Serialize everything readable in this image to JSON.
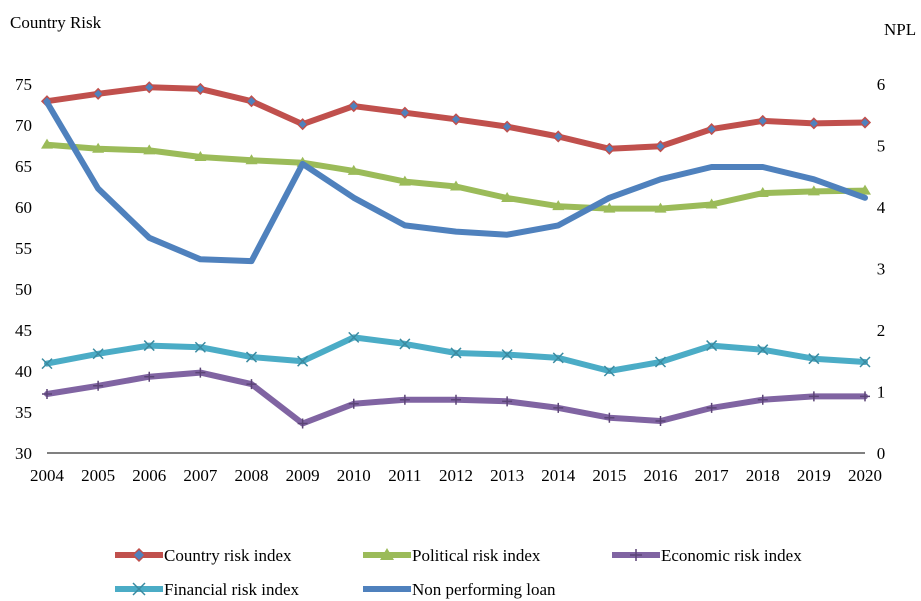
{
  "chart_data": {
    "type": "line",
    "y_left_label": "Country Risk",
    "y_right_label": "NPL",
    "x": [
      "2004",
      "2005",
      "2006",
      "2007",
      "2008",
      "2009",
      "2010",
      "2011",
      "2012",
      "2013",
      "2014",
      "2015",
      "2016",
      "2017",
      "2018",
      "2019",
      "2020"
    ],
    "ylim_left": [
      30,
      75
    ],
    "yticks_left": [
      30,
      35,
      40,
      45,
      50,
      55,
      60,
      65,
      70,
      75
    ],
    "ylim_right": [
      0,
      6
    ],
    "yticks_right": [
      0,
      1,
      2,
      3,
      4,
      5,
      6
    ],
    "grid": false,
    "legend_position": "bottom",
    "series": [
      {
        "name": "Country risk index",
        "axis": "left",
        "color": "#c0504d",
        "marker": "diamond",
        "values": [
          72.9,
          73.8,
          74.6,
          74.4,
          72.9,
          70.1,
          72.3,
          71.5,
          70.7,
          69.8,
          68.6,
          67.1,
          67.4,
          69.5,
          70.5,
          70.2,
          70.3
        ]
      },
      {
        "name": "Political risk index",
        "axis": "left",
        "color": "#9bbb59",
        "marker": "triangle",
        "values": [
          67.6,
          67.1,
          66.9,
          66.1,
          65.7,
          65.4,
          64.4,
          63.1,
          62.5,
          61.1,
          60.1,
          59.8,
          59.8,
          60.3,
          61.7,
          61.9,
          62.0
        ]
      },
      {
        "name": "Economic risk index",
        "axis": "left",
        "color": "#8064a2",
        "marker": "cross",
        "values": [
          37.2,
          38.2,
          39.3,
          39.8,
          38.4,
          33.6,
          36.0,
          36.5,
          36.5,
          36.3,
          35.5,
          34.3,
          33.9,
          35.5,
          36.5,
          36.9,
          36.9
        ]
      },
      {
        "name": "Financial risk index",
        "axis": "left",
        "color": "#4bacc6",
        "marker": "x",
        "values": [
          40.9,
          42.1,
          43.1,
          42.9,
          41.7,
          41.2,
          44.1,
          43.3,
          42.2,
          42.0,
          41.6,
          40.0,
          41.1,
          43.1,
          42.6,
          41.5,
          41.1
        ]
      },
      {
        "name": "Non performing loan",
        "axis": "right",
        "color": "#4f81bd",
        "marker": "none",
        "values": [
          5.7,
          4.3,
          3.5,
          3.15,
          3.12,
          4.7,
          4.15,
          3.7,
          3.6,
          3.55,
          3.7,
          4.15,
          4.45,
          4.65,
          4.65,
          4.45,
          4.15
        ]
      }
    ]
  }
}
